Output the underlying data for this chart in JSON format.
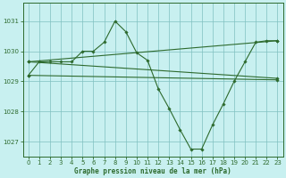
{
  "xlabel": "Graphe pression niveau de la mer (hPa)",
  "bg_color": "#c8f0f0",
  "grid_color": "#80c0c0",
  "line_color": "#2d6a2d",
  "ylim": [
    1026.5,
    1031.6
  ],
  "xlim": [
    -0.5,
    23.5
  ],
  "yticks": [
    1027,
    1028,
    1029,
    1030,
    1031
  ],
  "xticks": [
    0,
    1,
    2,
    3,
    4,
    5,
    6,
    7,
    8,
    9,
    10,
    11,
    12,
    13,
    14,
    15,
    16,
    17,
    18,
    19,
    20,
    21,
    22,
    23
  ],
  "series": [
    {
      "x": [
        0,
        1,
        2,
        3,
        4,
        5,
        6,
        7,
        8,
        9,
        10,
        11,
        12,
        13,
        14,
        15,
        16,
        17,
        18,
        19,
        20,
        21,
        22,
        23
      ],
      "y": [
        1029.2,
        1029.65,
        1029.65,
        1029.65,
        1029.65,
        1030.0,
        1030.0,
        1030.3,
        1031.0,
        1030.65,
        1029.95,
        1029.7,
        1028.75,
        1028.1,
        1027.4,
        1026.75,
        1026.75,
        1027.55,
        1028.25,
        1029.0,
        1029.65,
        1030.3,
        1030.35,
        1030.35
      ]
    },
    {
      "x": [
        0,
        23
      ],
      "y": [
        1029.65,
        1030.35
      ]
    },
    {
      "x": [
        0,
        23
      ],
      "y": [
        1029.65,
        1029.1
      ]
    },
    {
      "x": [
        0,
        23
      ],
      "y": [
        1029.2,
        1029.05
      ]
    }
  ]
}
